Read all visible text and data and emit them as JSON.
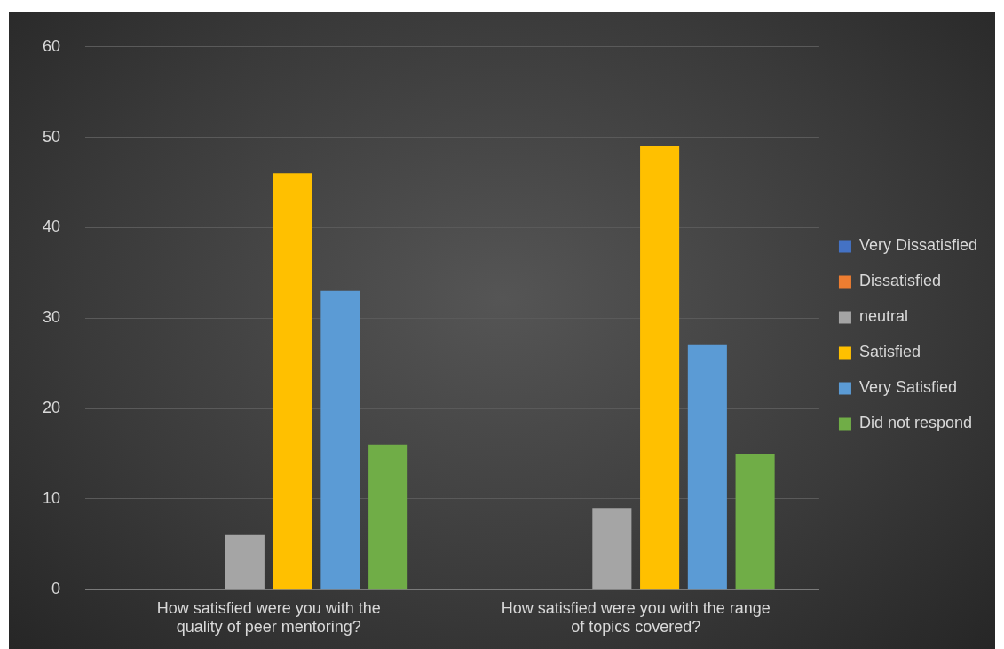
{
  "chart_data": {
    "type": "bar",
    "categories": [
      "How satisfied were you with the quality of peer mentoring?",
      "How satisfied were you with the range of topics covered?"
    ],
    "series": [
      {
        "name": "Very Dissatisfied",
        "color": "#4472c4",
        "values": [
          0,
          0
        ]
      },
      {
        "name": "Dissatisfied",
        "color": "#ed7d31",
        "values": [
          0,
          0
        ]
      },
      {
        "name": "neutral",
        "color": "#a5a5a5",
        "values": [
          6,
          9
        ]
      },
      {
        "name": "Satisfied",
        "color": "#ffc000",
        "values": [
          46,
          49
        ]
      },
      {
        "name": "Very Satisfied",
        "color": "#5b9bd5",
        "values": [
          33,
          27
        ]
      },
      {
        "name": "Did not respond",
        "color": "#70ad47",
        "values": [
          16,
          15
        ]
      }
    ],
    "ylim": [
      0,
      60
    ],
    "yticks": [
      0,
      10,
      20,
      30,
      40,
      50,
      60
    ],
    "grid": "y",
    "legend": "right"
  }
}
